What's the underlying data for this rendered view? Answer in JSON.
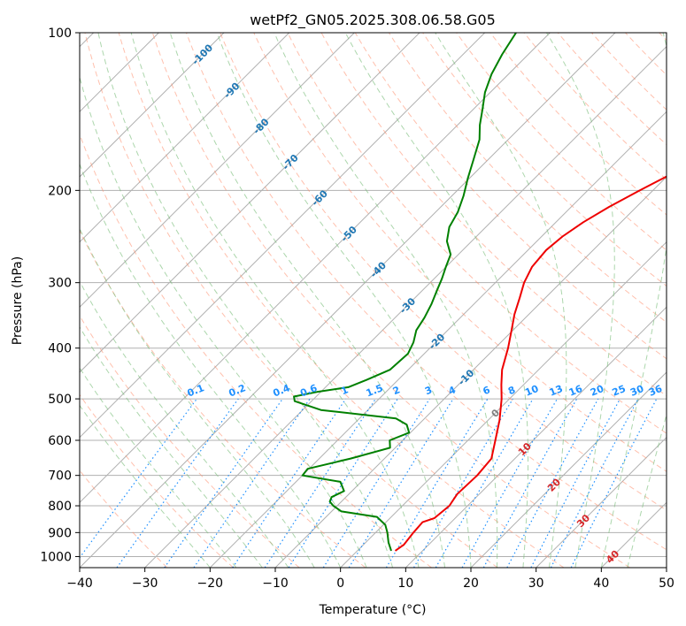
{
  "chart_data": {
    "type": "line",
    "title": "wetPf2_GN05.2025.308.06.58.G05",
    "xlabel": "Temperature (°C)",
    "ylabel": "Pressure (hPa)",
    "xlim": [
      -40,
      50
    ],
    "ylim": [
      1050,
      100
    ],
    "y_scale": "log",
    "x_ticks": [
      -40,
      -30,
      -20,
      -10,
      0,
      10,
      20,
      30,
      40,
      50
    ],
    "x_tick_labels": [
      "−40",
      "−30",
      "−20",
      "−10",
      "0",
      "10",
      "20",
      "30",
      "40",
      "50"
    ],
    "y_ticks": [
      100,
      200,
      300,
      400,
      500,
      600,
      700,
      800,
      900,
      1000
    ],
    "y_tick_labels": [
      "100",
      "200",
      "300",
      "400",
      "500",
      "600",
      "700",
      "800",
      "900",
      "1000"
    ],
    "grid": true,
    "skew": 45,
    "colors": {
      "temperature": "#ee0000",
      "dewpoint": "#008000",
      "isotherm": "#b0b0b0",
      "dry_adiabat": "#ff8c69",
      "moist_adiabat": "#7fc07f",
      "mixing_ratio": "#1e90ff",
      "isotherm_label": "#1f77b4",
      "red_label": "#d62728",
      "gray_label": "#808080"
    },
    "series": [
      {
        "key": "temperature",
        "points": [
          [
            5.8,
            975
          ],
          [
            6.2,
            950
          ],
          [
            5.8,
            900
          ],
          [
            5.6,
            860
          ],
          [
            6.8,
            845
          ],
          [
            7.2,
            800
          ],
          [
            6.6,
            760
          ],
          [
            6.8,
            700
          ],
          [
            6.4,
            650
          ],
          [
            4.2,
            600
          ],
          [
            1.8,
            550
          ],
          [
            -1.2,
            500
          ],
          [
            -3.4,
            470
          ],
          [
            -5.6,
            440
          ],
          [
            -8.0,
            400
          ],
          [
            -10.2,
            370
          ],
          [
            -12.2,
            345
          ],
          [
            -14.0,
            320
          ],
          [
            -15.6,
            300
          ],
          [
            -16.8,
            280
          ],
          [
            -17.2,
            260
          ],
          [
            -16.8,
            245
          ],
          [
            -15.8,
            230
          ],
          [
            -14.2,
            215
          ],
          [
            -12.0,
            200
          ],
          [
            -9.5,
            185
          ],
          [
            -7.0,
            172
          ],
          [
            -5.4,
            162
          ],
          [
            -4.0,
            150
          ],
          [
            -3.0,
            135
          ],
          [
            -1.8,
            120
          ],
          [
            -0.8,
            110
          ],
          [
            0.2,
            100
          ]
        ]
      },
      {
        "key": "dewpoint",
        "points": [
          [
            5.2,
            975
          ],
          [
            3.5,
            940
          ],
          [
            1.8,
            900
          ],
          [
            0.3,
            870
          ],
          [
            -2.2,
            840
          ],
          [
            -8.5,
            820
          ],
          [
            -10.6,
            800
          ],
          [
            -11.8,
            785
          ],
          [
            -12.2,
            770
          ],
          [
            -11.2,
            750
          ],
          [
            -13.2,
            720
          ],
          [
            -20.0,
            700
          ],
          [
            -20.2,
            680
          ],
          [
            -15.2,
            650
          ],
          [
            -10.8,
            620
          ],
          [
            -12.0,
            600
          ],
          [
            -10.2,
            580
          ],
          [
            -11.8,
            560
          ],
          [
            -14.4,
            545
          ],
          [
            -27.2,
            525
          ],
          [
            -32.6,
            505
          ],
          [
            -33.4,
            495
          ],
          [
            -30.6,
            485
          ],
          [
            -26.5,
            475
          ],
          [
            -24.8,
            460
          ],
          [
            -22.8,
            440
          ],
          [
            -22.5,
            410
          ],
          [
            -23.4,
            390
          ],
          [
            -24.8,
            370
          ],
          [
            -25.5,
            350
          ],
          [
            -26.5,
            330
          ],
          [
            -27.8,
            310
          ],
          [
            -28.8,
            295
          ],
          [
            -30.0,
            280
          ],
          [
            -31.2,
            265
          ],
          [
            -33.8,
            250
          ],
          [
            -35.6,
            235
          ],
          [
            -36.6,
            220
          ],
          [
            -38.2,
            205
          ],
          [
            -40.2,
            190
          ],
          [
            -42.2,
            175
          ],
          [
            -44.4,
            160
          ],
          [
            -46.6,
            150
          ],
          [
            -48.6,
            140
          ],
          [
            -50.8,
            130
          ],
          [
            -52.6,
            120
          ],
          [
            -54.0,
            110
          ],
          [
            -55.2,
            100
          ]
        ]
      }
    ],
    "isotherm_labels": [
      "-100",
      "-90",
      "-80",
      "-70",
      "-60",
      "-50",
      "-40",
      "-30",
      "-20",
      "-10",
      "0",
      "10",
      "20",
      "30",
      "40"
    ],
    "mixing_ratio_labels": [
      "0.1",
      "0.2",
      "0.4",
      "0.6",
      "1",
      "1.5",
      "2",
      "3",
      "4",
      "6",
      "8",
      "10",
      "13",
      "16",
      "20",
      "25",
      "30",
      "36"
    ]
  }
}
